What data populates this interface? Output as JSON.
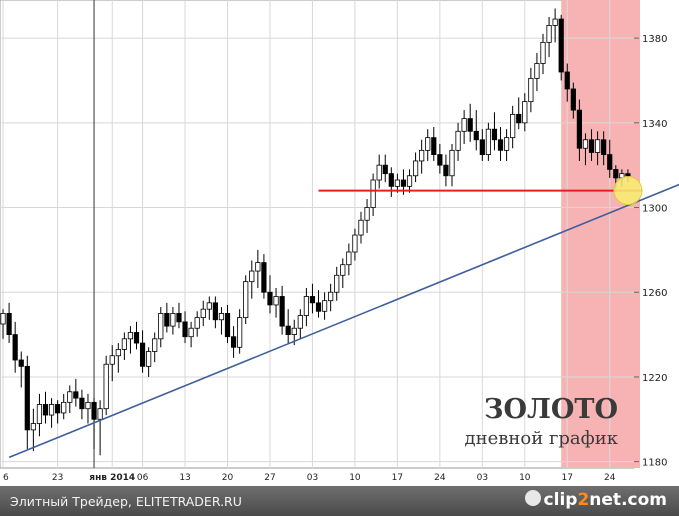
{
  "chart_data": {
    "type": "candlestick",
    "title": "ЗОЛОТО",
    "subtitle": "дневной график",
    "ylim": [
      1177,
      1398
    ],
    "y_ticks": [
      1180,
      1220,
      1260,
      1300,
      1340,
      1380
    ],
    "x_ticks": [
      "6",
      "23",
      "янв 2014",
      "06",
      "13",
      "20",
      "27",
      "03",
      "10",
      "17",
      "24",
      "03",
      "10",
      "17",
      "24"
    ],
    "support_level": 1308,
    "trendline": [
      [
        1,
        1182
      ],
      [
        115,
        1315
      ]
    ],
    "highlight_start_index": 92,
    "marker": {
      "index": 103,
      "value": 1308
    },
    "candles": [
      [
        1245,
        1252,
        1238,
        1250
      ],
      [
        1250,
        1255,
        1236,
        1240
      ],
      [
        1240,
        1246,
        1222,
        1228
      ],
      [
        1228,
        1232,
        1215,
        1225
      ],
      [
        1225,
        1230,
        1186,
        1195
      ],
      [
        1195,
        1205,
        1185,
        1198
      ],
      [
        1198,
        1212,
        1192,
        1207
      ],
      [
        1207,
        1213,
        1198,
        1202
      ],
      [
        1202,
        1210,
        1196,
        1207
      ],
      [
        1207,
        1209,
        1198,
        1203
      ],
      [
        1203,
        1212,
        1200,
        1208
      ],
      [
        1208,
        1216,
        1203,
        1213
      ],
      [
        1213,
        1219,
        1206,
        1210
      ],
      [
        1210,
        1214,
        1200,
        1205
      ],
      [
        1205,
        1212,
        1198,
        1208
      ],
      [
        1208,
        1210,
        1186,
        1200
      ],
      [
        1200,
        1209,
        1183,
        1205
      ],
      [
        1205,
        1230,
        1202,
        1226
      ],
      [
        1226,
        1235,
        1218,
        1230
      ],
      [
        1230,
        1236,
        1222,
        1233
      ],
      [
        1233,
        1241,
        1228,
        1238
      ],
      [
        1238,
        1244,
        1231,
        1241
      ],
      [
        1241,
        1246,
        1233,
        1236
      ],
      [
        1236,
        1242,
        1222,
        1225
      ],
      [
        1225,
        1234,
        1220,
        1232
      ],
      [
        1232,
        1241,
        1227,
        1238
      ],
      [
        1238,
        1253,
        1234,
        1250
      ],
      [
        1250,
        1255,
        1241,
        1244
      ],
      [
        1244,
        1253,
        1240,
        1250
      ],
      [
        1250,
        1255,
        1243,
        1246
      ],
      [
        1246,
        1251,
        1236,
        1239
      ],
      [
        1239,
        1246,
        1234,
        1243
      ],
      [
        1243,
        1251,
        1239,
        1248
      ],
      [
        1248,
        1256,
        1244,
        1252
      ],
      [
        1252,
        1258,
        1247,
        1255
      ],
      [
        1255,
        1258,
        1243,
        1247
      ],
      [
        1247,
        1253,
        1240,
        1250
      ],
      [
        1250,
        1254,
        1236,
        1239
      ],
      [
        1239,
        1244,
        1229,
        1234
      ],
      [
        1234,
        1252,
        1231,
        1248
      ],
      [
        1248,
        1268,
        1245,
        1265
      ],
      [
        1265,
        1275,
        1257,
        1270
      ],
      [
        1270,
        1280,
        1262,
        1274
      ],
      [
        1274,
        1278,
        1257,
        1260
      ],
      [
        1260,
        1268,
        1250,
        1254
      ],
      [
        1254,
        1262,
        1248,
        1258
      ],
      [
        1258,
        1263,
        1240,
        1244
      ],
      [
        1244,
        1252,
        1236,
        1240
      ],
      [
        1240,
        1247,
        1235,
        1243
      ],
      [
        1243,
        1252,
        1238,
        1249
      ],
      [
        1249,
        1262,
        1244,
        1258
      ],
      [
        1258,
        1264,
        1250,
        1255
      ],
      [
        1255,
        1261,
        1248,
        1251
      ],
      [
        1251,
        1260,
        1247,
        1256
      ],
      [
        1256,
        1264,
        1251,
        1260
      ],
      [
        1260,
        1272,
        1256,
        1268
      ],
      [
        1268,
        1276,
        1262,
        1273
      ],
      [
        1273,
        1283,
        1268,
        1279
      ],
      [
        1279,
        1290,
        1275,
        1287
      ],
      [
        1287,
        1298,
        1283,
        1294
      ],
      [
        1294,
        1304,
        1288,
        1300
      ],
      [
        1300,
        1316,
        1296,
        1313
      ],
      [
        1313,
        1325,
        1309,
        1320
      ],
      [
        1320,
        1325,
        1312,
        1316
      ],
      [
        1316,
        1319,
        1305,
        1310
      ],
      [
        1310,
        1316,
        1307,
        1313
      ],
      [
        1313,
        1318,
        1306,
        1310
      ],
      [
        1310,
        1318,
        1307,
        1315
      ],
      [
        1315,
        1326,
        1312,
        1322
      ],
      [
        1322,
        1332,
        1316,
        1327
      ],
      [
        1327,
        1337,
        1322,
        1333
      ],
      [
        1333,
        1338,
        1322,
        1325
      ],
      [
        1325,
        1330,
        1316,
        1320
      ],
      [
        1320,
        1325,
        1310,
        1315
      ],
      [
        1315,
        1330,
        1310,
        1327
      ],
      [
        1327,
        1340,
        1322,
        1336
      ],
      [
        1336,
        1346,
        1330,
        1342
      ],
      [
        1342,
        1349,
        1331,
        1336
      ],
      [
        1336,
        1346,
        1327,
        1332
      ],
      [
        1332,
        1337,
        1322,
        1325
      ],
      [
        1325,
        1340,
        1322,
        1337
      ],
      [
        1337,
        1345,
        1327,
        1332
      ],
      [
        1332,
        1338,
        1322,
        1327
      ],
      [
        1327,
        1337,
        1322,
        1333
      ],
      [
        1333,
        1348,
        1328,
        1344
      ],
      [
        1344,
        1352,
        1337,
        1340
      ],
      [
        1340,
        1354,
        1336,
        1350
      ],
      [
        1350,
        1366,
        1345,
        1361
      ],
      [
        1361,
        1373,
        1355,
        1368
      ],
      [
        1368,
        1382,
        1363,
        1378
      ],
      [
        1378,
        1390,
        1371,
        1386
      ],
      [
        1386,
        1394,
        1378,
        1389
      ],
      [
        1389,
        1391,
        1360,
        1364
      ],
      [
        1364,
        1368,
        1350,
        1356
      ],
      [
        1356,
        1359,
        1342,
        1346
      ],
      [
        1346,
        1351,
        1322,
        1328
      ],
      [
        1328,
        1335,
        1320,
        1332
      ],
      [
        1332,
        1337,
        1322,
        1326
      ],
      [
        1326,
        1336,
        1320,
        1332
      ],
      [
        1332,
        1336,
        1320,
        1325
      ],
      [
        1325,
        1332,
        1314,
        1318
      ],
      [
        1318,
        1320,
        1309,
        1314
      ],
      [
        1314,
        1318,
        1310,
        1316
      ],
      [
        1316,
        1318,
        1312,
        1315
      ]
    ]
  },
  "footer": {
    "source": "Элитный Трейдер, ELITETRADER.RU",
    "brand_a": "clip",
    "brand_b": "2",
    "brand_c": "net",
    "brand_d": ".com"
  },
  "colors": {
    "up": "#ffffff",
    "down": "#000000",
    "support": "#ee1c1c",
    "trend": "#3e5f9c",
    "highlight": "#f7b3b3",
    "marker": "#f8ee70"
  }
}
